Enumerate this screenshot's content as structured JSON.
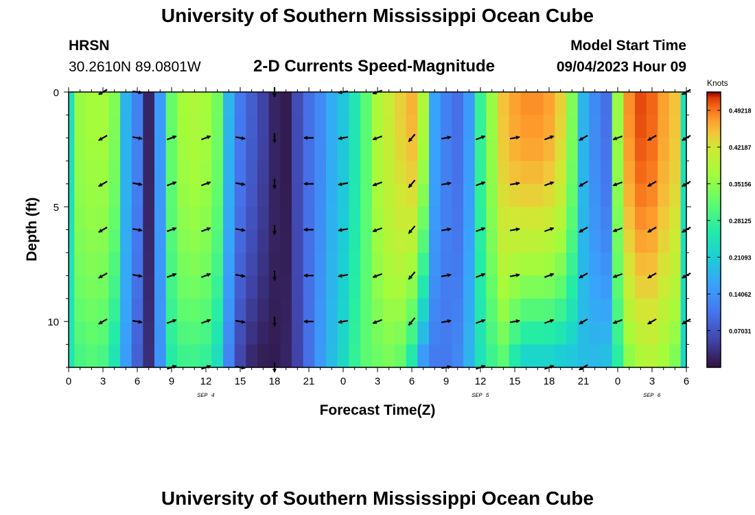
{
  "page_title": "University of Southern Mississippi Ocean Cube",
  "footer_title": "University of Southern Mississippi Ocean Cube",
  "station": {
    "name": "HRSN",
    "coords": "30.2610N  89.0801W"
  },
  "model": {
    "label": "Model Start Time",
    "datetime": "09/04/2023 Hour 09"
  },
  "chart_data": {
    "type": "heatmap",
    "title": "2-D Currents Speed-Magnitude",
    "xlabel": "Forecast Time(Z)",
    "ylabel": "Depth (ft)",
    "x_range_hours": [
      0,
      54
    ],
    "ylim": [
      0,
      12
    ],
    "y_ticks": [
      "0",
      "5",
      "10"
    ],
    "x_tick_labels": [
      "0",
      "3",
      "6",
      "9",
      "12",
      "15",
      "18",
      "21",
      "0",
      "3",
      "6",
      "9",
      "12",
      "15",
      "18",
      "21",
      "0",
      "3",
      "6"
    ],
    "date_labels": [
      {
        "hour": 12,
        "text": "SEP 4"
      },
      {
        "hour": 36,
        "text": "SEP 5"
      },
      {
        "hour": 51,
        "text": "SEP 6"
      }
    ],
    "colorbar": {
      "units": "Knots",
      "min": 0.0,
      "max": 0.5273,
      "tick_labels": [
        "0.07031",
        "0.14062",
        "0.21093",
        "0.28125",
        "0.35156",
        "0.42187",
        "0.49218"
      ]
    },
    "depths_ft": [
      0,
      2,
      4,
      6,
      8,
      10,
      12
    ],
    "time_hours": [
      0,
      1,
      2,
      3,
      4,
      5,
      6,
      7,
      8,
      9,
      10,
      11,
      12,
      13,
      14,
      15,
      16,
      17,
      18,
      19,
      20,
      21,
      22,
      23,
      24,
      25,
      26,
      27,
      28,
      29,
      30,
      31,
      32,
      33,
      34,
      35,
      36,
      37,
      38,
      39,
      40,
      41,
      42,
      43,
      44,
      45,
      46,
      47,
      48,
      49,
      50,
      51,
      52,
      53,
      54
    ],
    "surface_speed_knots": [
      0.24,
      0.36,
      0.37,
      0.37,
      0.34,
      0.18,
      0.12,
      0.02,
      0.15,
      0.32,
      0.37,
      0.38,
      0.37,
      0.33,
      0.18,
      0.11,
      0.08,
      0.05,
      0.02,
      0.01,
      0.06,
      0.1,
      0.13,
      0.17,
      0.2,
      0.25,
      0.31,
      0.38,
      0.41,
      0.44,
      0.46,
      0.38,
      0.16,
      0.12,
      0.1,
      0.15,
      0.28,
      0.36,
      0.45,
      0.47,
      0.48,
      0.48,
      0.47,
      0.44,
      0.34,
      0.18,
      0.13,
      0.1,
      0.36,
      0.48,
      0.51,
      0.5,
      0.47,
      0.45,
      0.24
    ],
    "bottom_speed_knots": [
      0.25,
      0.29,
      0.3,
      0.29,
      0.24,
      0.15,
      0.08,
      0.03,
      0.14,
      0.26,
      0.28,
      0.28,
      0.27,
      0.23,
      0.12,
      0.05,
      0.02,
      0.01,
      0.01,
      0.02,
      0.05,
      0.1,
      0.15,
      0.19,
      0.23,
      0.28,
      0.31,
      0.32,
      0.33,
      0.31,
      0.24,
      0.13,
      0.11,
      0.11,
      0.13,
      0.18,
      0.24,
      0.28,
      0.3,
      0.24,
      0.2,
      0.2,
      0.2,
      0.19,
      0.19,
      0.19,
      0.19,
      0.2,
      0.26,
      0.34,
      0.37,
      0.38,
      0.36,
      0.33,
      0.22
    ],
    "vectors": [
      {
        "hour": 3,
        "depths": [
          0,
          2,
          4,
          6,
          8,
          10
        ],
        "direction_deg": 240
      },
      {
        "hour": 6,
        "depths": [
          0,
          2,
          4,
          6,
          8,
          10
        ],
        "direction_deg": 100
      },
      {
        "hour": 9,
        "depths": [
          2,
          4,
          6,
          8,
          10,
          12
        ],
        "direction_deg": 70
      },
      {
        "hour": 12,
        "depths": [
          2,
          4,
          6,
          8,
          10,
          12
        ],
        "direction_deg": 70
      },
      {
        "hour": 15,
        "depths": [
          2,
          4,
          6,
          8,
          10,
          12
        ],
        "direction_deg": 100
      },
      {
        "hour": 18,
        "depths": [
          0,
          2,
          4,
          6,
          8,
          10,
          12
        ],
        "direction_deg": 180
      },
      {
        "hour": 21,
        "depths": [
          2,
          4,
          6,
          8,
          10
        ],
        "direction_deg": 270
      },
      {
        "hour": 24,
        "depths": [
          0,
          2,
          4,
          6,
          8,
          10
        ],
        "direction_deg": 260
      },
      {
        "hour": 27,
        "depths": [
          0,
          2,
          4,
          6,
          8,
          10
        ],
        "direction_deg": 250
      },
      {
        "hour": 30,
        "depths": [
          2,
          4,
          6,
          8,
          10
        ],
        "direction_deg": 220
      },
      {
        "hour": 33,
        "depths": [
          2,
          4,
          6,
          8,
          10,
          12
        ],
        "direction_deg": 80
      },
      {
        "hour": 36,
        "depths": [
          2,
          4,
          6,
          8,
          10,
          12
        ],
        "direction_deg": 70
      },
      {
        "hour": 39,
        "depths": [
          2,
          4,
          6,
          8,
          10
        ],
        "direction_deg": 80
      },
      {
        "hour": 42,
        "depths": [
          2,
          4,
          6,
          8,
          10,
          12
        ],
        "direction_deg": 70
      },
      {
        "hour": 45,
        "depths": [
          2,
          4,
          6,
          8,
          10,
          12
        ],
        "direction_deg": 240
      },
      {
        "hour": 48,
        "depths": [
          2,
          4,
          6,
          8,
          10
        ],
        "direction_deg": 250
      },
      {
        "hour": 51,
        "depths": [
          2,
          4,
          6,
          8,
          10
        ],
        "direction_deg": 240
      },
      {
        "hour": 54,
        "depths": [
          0,
          2,
          4,
          6,
          8,
          10
        ],
        "direction_deg": 240
      }
    ]
  }
}
